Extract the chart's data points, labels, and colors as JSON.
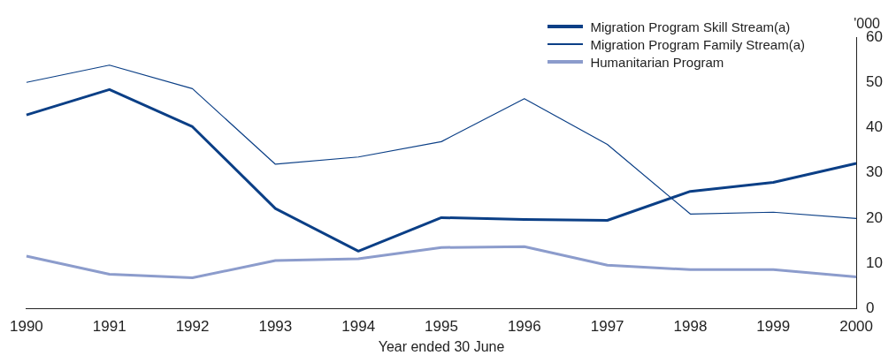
{
  "chart_data": {
    "type": "line",
    "xlabel": "Year ended 30 June",
    "ylabel": "'000",
    "categories": [
      "1990",
      "1991",
      "1992",
      "1993",
      "1994",
      "1995",
      "1996",
      "1997",
      "1998",
      "1999",
      "2000"
    ],
    "series": [
      {
        "name": "Migration Program Skill Stream(a)",
        "color": "#0b3f86",
        "values": [
          42.8,
          48.4,
          40.2,
          22.1,
          12.7,
          20.1,
          19.7,
          19.5,
          25.9,
          27.9,
          32.1
        ]
      },
      {
        "name": "Migration Program Family Stream(a)",
        "color": "#0b3f86",
        "values": [
          50,
          53.8,
          48.6,
          31.9,
          33.5,
          36.9,
          46.4,
          36.3,
          20.9,
          21.3,
          19.9
        ]
      },
      {
        "name": "Humanitarian Program",
        "color": "#8c9ccc",
        "values": [
          11.6,
          7.6,
          6.8,
          10.6,
          11.0,
          13.5,
          13.7,
          9.6,
          8.6,
          8.6,
          7.0
        ]
      }
    ],
    "ylim": [
      0,
      60
    ],
    "yticks": [
      0,
      10,
      20,
      30,
      40,
      50,
      60
    ],
    "grid": false,
    "legend": "top right",
    "marker": "none",
    "line_style": "solid"
  }
}
